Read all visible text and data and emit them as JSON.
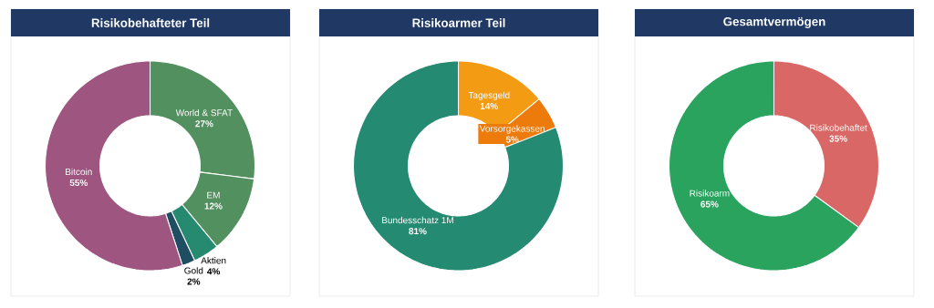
{
  "chart_data": [
    {
      "type": "donut",
      "title": "Risikobehafteter Teil",
      "categories": [
        "World & SFAT",
        "EM",
        "Aktien",
        "Gold",
        "Bitcoin"
      ],
      "values": [
        27,
        12,
        4,
        2,
        55
      ],
      "value_labels": [
        "27%",
        "12%",
        "4%",
        "2%",
        "55%"
      ],
      "colors": [
        "#52905f",
        "#52905f",
        "#268a70",
        "#1f4e63",
        "#9e557f"
      ]
    },
    {
      "type": "donut",
      "title": "Risikoarmer Teil",
      "categories": [
        "Tagesgeld",
        "Vorsorgekassen",
        "Bundesschatz 1M"
      ],
      "values": [
        14,
        5,
        81
      ],
      "value_labels": [
        "14%",
        "5%",
        "81%"
      ],
      "colors": [
        "#f49b14",
        "#ec7b0c",
        "#258a72"
      ]
    },
    {
      "type": "donut",
      "title": "Gesamtvermögen",
      "categories": [
        "Risikobehaftet",
        "Risikoarm"
      ],
      "values": [
        35,
        65
      ],
      "value_labels": [
        "35%",
        "65%"
      ],
      "colors": [
        "#d86765",
        "#2aa35f"
      ]
    }
  ]
}
